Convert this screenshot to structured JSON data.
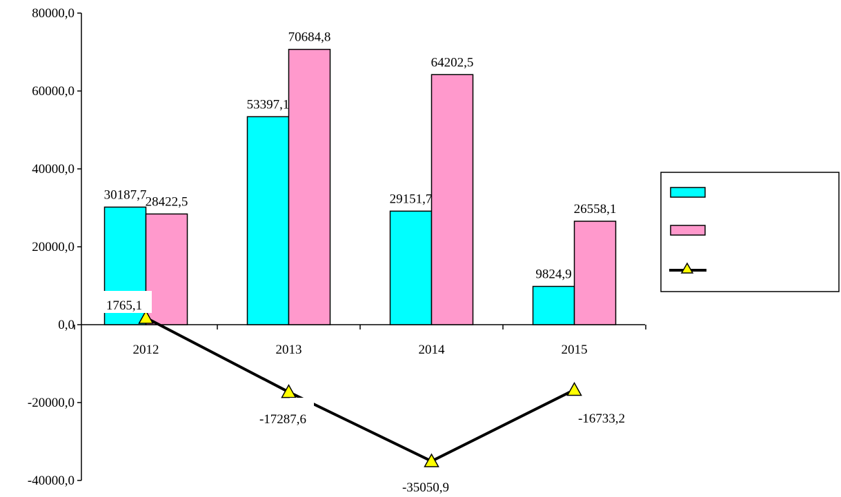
{
  "chart_data": {
    "type": "bar",
    "categories": [
      "2012",
      "2013",
      "2014",
      "2015"
    ],
    "series": [
      {
        "type": "bar",
        "color": "#00FFFF",
        "values": [
          30187.7,
          53397.1,
          29151.7,
          9824.9
        ],
        "labels": [
          "30187,7",
          "53397,1",
          "29151,7",
          "9824,9"
        ]
      },
      {
        "type": "bar",
        "color": "#FF99CC",
        "values": [
          28422.5,
          70684.8,
          64202.5,
          26558.1
        ],
        "labels": [
          "28422,5",
          "70684,8",
          "64202,5",
          "26558,1"
        ]
      },
      {
        "type": "line",
        "color": "#000000",
        "marker": "triangle",
        "marker_color": "#FFFF00",
        "values": [
          1765.1,
          -17287.6,
          -35050.9,
          -16733.2
        ],
        "labels": [
          "1765,1",
          "-17287,6",
          "-35050,9",
          "-16733,2"
        ]
      }
    ],
    "ylim": [
      -40000,
      80000
    ],
    "yticks": [
      80000,
      60000,
      40000,
      20000,
      0,
      -20000,
      -40000
    ],
    "ytick_labels": [
      "80000,0",
      "60000,0",
      "40000,0",
      "20000,0",
      "0,0",
      "-20000,0",
      "-40000,0"
    ],
    "grid": false,
    "legend": {
      "position": "right"
    }
  }
}
